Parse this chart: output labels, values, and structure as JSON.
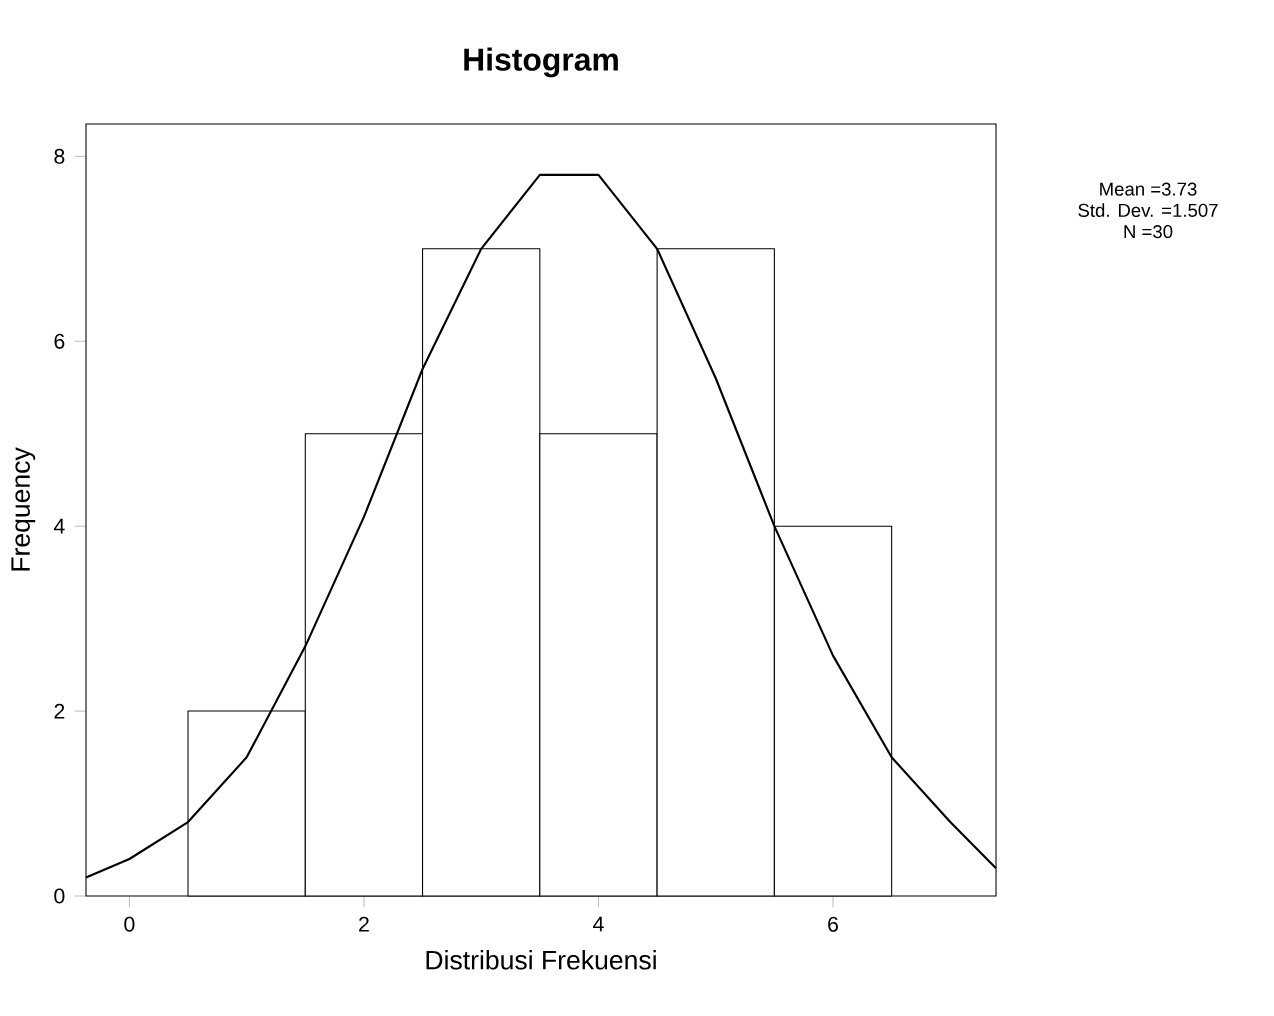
{
  "chart_data": {
    "type": "histogram",
    "title": "Histogram",
    "xlabel": "Distribusi Frekuensi",
    "ylabel": "Frequency",
    "bins": [
      0.5,
      1.5,
      2.5,
      3.5,
      4.5,
      5.5,
      6.5
    ],
    "values": [
      2,
      5,
      7,
      5,
      7,
      4
    ],
    "color": "#ffffff",
    "series": [
      {
        "type": "line",
        "color": "#000000",
        "x": [
          -0.37,
          0,
          0.5,
          1,
          1.5,
          2,
          2.5,
          3,
          3.5,
          3.8,
          4,
          4.5,
          5,
          5.5,
          6,
          6.5,
          7,
          7.39
        ],
        "values": [
          0.2,
          0.4,
          0.8,
          1.5,
          2.7,
          4.1,
          5.7,
          7.0,
          7.8,
          7.8,
          7.8,
          7.0,
          5.6,
          4.0,
          2.6,
          1.5,
          0.8,
          0.3
        ]
      }
    ],
    "xlim": [
      -0.37,
      7.39
    ],
    "ylim": [
      0,
      8.35
    ],
    "xticks": [
      0,
      2,
      4,
      6
    ],
    "yticks": [
      0,
      2,
      4,
      6,
      8
    ],
    "grid": false,
    "marker": "none",
    "line_style": "solid",
    "annotations": [
      "Mean =3.73",
      "Std. Dev. =1.507",
      "N =30"
    ]
  }
}
